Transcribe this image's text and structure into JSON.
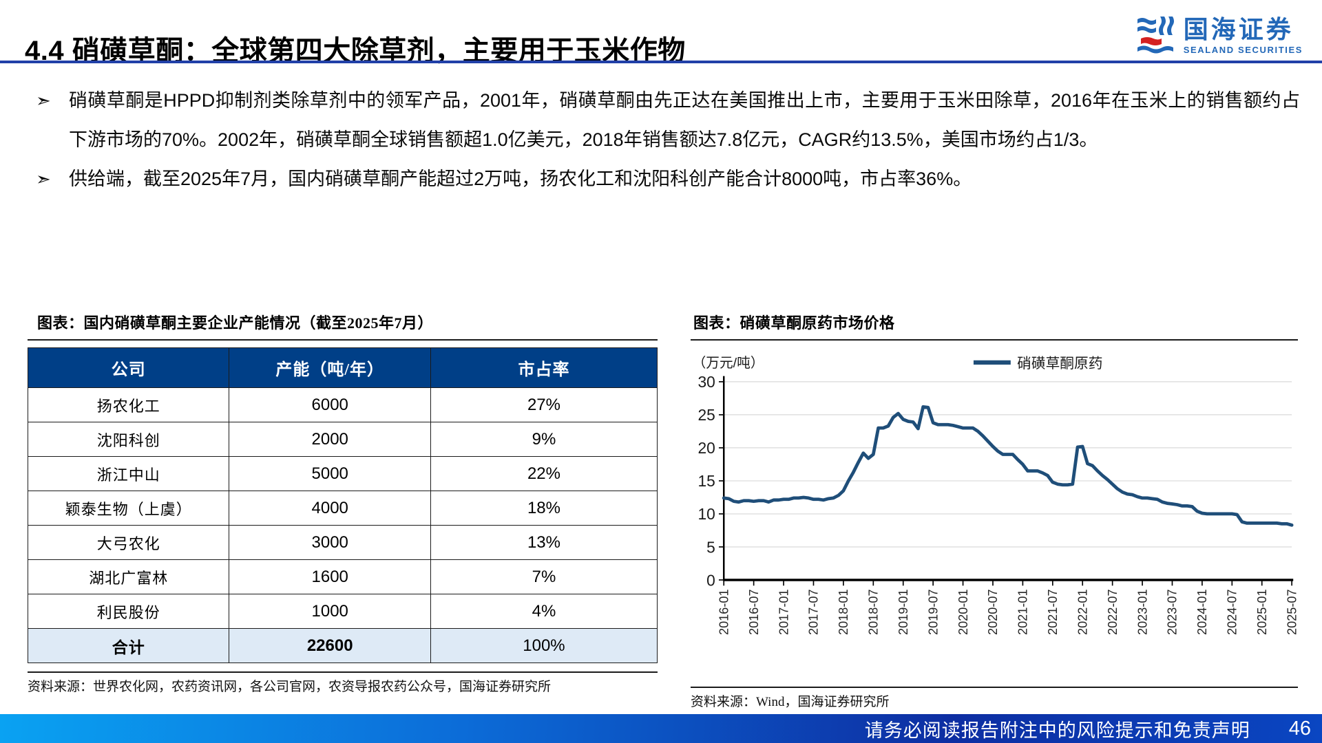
{
  "header": {
    "title": "4.4 硝磺草酮：全球第四大除草剂，主要用于玉米作物",
    "logo": {
      "cn": "国海证券",
      "en": "SEALAND SECURITIES"
    }
  },
  "bullets": [
    "硝磺草酮是HPPD抑制剂类除草剂中的领军产品，2001年，硝磺草酮由先正达在美国推出上市，主要用于玉米田除草，2016年在玉米上的销售额约占下游市场的70%。2002年，硝磺草酮全球销售额超1.0亿美元，2018年销售额达7.8亿元，CAGR约13.5%，美国市场约占1/3。",
    "供给端，截至2025年7月，国内硝磺草酮产能超过2万吨，扬农化工和沈阳科创产能合计8000吨，市占率36%。"
  ],
  "capacity_table": {
    "title": "图表：国内硝磺草酮主要企业产能情况（截至2025年7月）",
    "columns": [
      "公司",
      "产能（吨/年）",
      "市占率"
    ],
    "rows": [
      [
        "扬农化工",
        "6000",
        "27%"
      ],
      [
        "沈阳科创",
        "2000",
        "9%"
      ],
      [
        "浙江中山",
        "5000",
        "22%"
      ],
      [
        "颖泰生物（上虞）",
        "4000",
        "18%"
      ],
      [
        "大弓农化",
        "3000",
        "13%"
      ],
      [
        "湖北广富林",
        "1600",
        "7%"
      ],
      [
        "利民股份",
        "1000",
        "4%"
      ]
    ],
    "total_row": [
      "合计",
      "22600",
      "100%"
    ],
    "source": "资料来源：世界农化网，农药资讯网，各公司官网，农资导报农药公众号，国海证券研究所"
  },
  "price_chart": {
    "title": "图表：硝磺草酮原药市场价格",
    "source": "资料来源：Wind，国海证券研究所"
  },
  "chart_data": {
    "type": "line",
    "title": "硝磺草酮原药市场价格",
    "unit_label": "（万元/吨）",
    "legend": "硝磺草酮原药",
    "line_color": "#1f4e79",
    "ylim": [
      0,
      30
    ],
    "yticks": [
      0,
      5,
      10,
      15,
      20,
      25,
      30
    ],
    "x_start": "2016-01",
    "x_end": "2025-07",
    "months_per_tick": 6,
    "x_tick_labels": [
      "2016-01",
      "2016-07",
      "2017-01",
      "2017-07",
      "2018-01",
      "2018-07",
      "2019-01",
      "2019-07",
      "2020-01",
      "2020-07",
      "2021-01",
      "2021-07",
      "2022-01",
      "2022-07",
      "2023-01",
      "2023-07",
      "2024-01",
      "2024-07",
      "2025-01",
      "2025-07"
    ],
    "series": [
      {
        "name": "硝磺草酮原药",
        "monthly_values": [
          12.4,
          12.3,
          11.9,
          11.8,
          12.0,
          12.0,
          11.9,
          12.0,
          12.0,
          11.8,
          12.1,
          12.1,
          12.2,
          12.2,
          12.4,
          12.4,
          12.5,
          12.4,
          12.2,
          12.2,
          12.1,
          12.3,
          12.4,
          12.8,
          13.5,
          15.0,
          16.3,
          17.8,
          19.2,
          18.4,
          19.0,
          23.0,
          23.0,
          23.3,
          24.6,
          25.2,
          24.3,
          24.0,
          23.9,
          22.9,
          26.2,
          26.1,
          23.8,
          23.5,
          23.5,
          23.5,
          23.4,
          23.2,
          23.0,
          23.0,
          23.0,
          22.5,
          21.8,
          21.0,
          20.2,
          19.5,
          19.0,
          19.0,
          19.0,
          18.2,
          17.5,
          16.5,
          16.5,
          16.5,
          16.2,
          15.8,
          14.8,
          14.5,
          14.4,
          14.4,
          14.5,
          20.1,
          20.2,
          17.6,
          17.3,
          16.5,
          15.8,
          15.2,
          14.5,
          13.8,
          13.3,
          13.0,
          12.9,
          12.6,
          12.4,
          12.4,
          12.3,
          12.2,
          11.8,
          11.6,
          11.5,
          11.4,
          11.2,
          11.2,
          11.1,
          10.4,
          10.1,
          10.0,
          10.0,
          10.0,
          10.0,
          10.0,
          10.0,
          9.9,
          8.8,
          8.6,
          8.6,
          8.6,
          8.6,
          8.6,
          8.6,
          8.6,
          8.5,
          8.5,
          8.3
        ]
      }
    ]
  },
  "footer": {
    "disclaimer": "请务必阅读报告附注中的风险提示和免责声明",
    "page_number": "46"
  },
  "colors": {
    "table_header_bg": "#003f87",
    "total_row_bg": "#deeaf6",
    "line_color": "#1f4e79",
    "title_rule": "#2140a8",
    "logo_blue": "#2368b8",
    "logo_red": "#d42020",
    "footer_gradient": [
      "#0aa2f2",
      "#0c6cd8",
      "#0d2ea2",
      "#0a46c2"
    ]
  }
}
